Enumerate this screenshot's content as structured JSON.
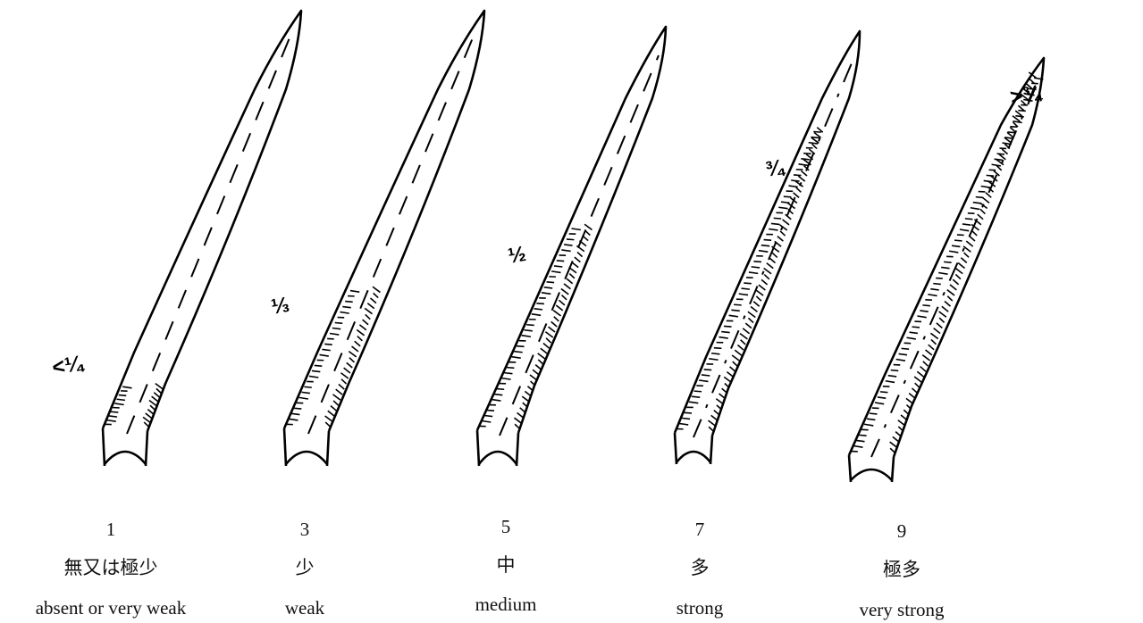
{
  "figure": {
    "colors": {
      "ink": "#000000",
      "text": "#111111",
      "background": "#ffffff"
    },
    "items": [
      {
        "score": "1",
        "label_ja": "無又は極少",
        "label_en": "absent or very weak",
        "marker": "<¼",
        "hair_coverage": 0.1
      },
      {
        "score": "3",
        "label_ja": "少",
        "label_en": "weak",
        "marker": "⅓",
        "hair_coverage": 0.33
      },
      {
        "score": "5",
        "label_ja": "中",
        "label_en": "medium",
        "marker": "½",
        "hair_coverage": 0.5
      },
      {
        "score": "7",
        "label_ja": "多",
        "label_en": "strong",
        "marker": "¾",
        "hair_coverage": 0.75
      },
      {
        "score": "9",
        "label_ja": "極多",
        "label_en": "very strong",
        "marker": ">¾",
        "hair_coverage": 0.95
      }
    ]
  }
}
